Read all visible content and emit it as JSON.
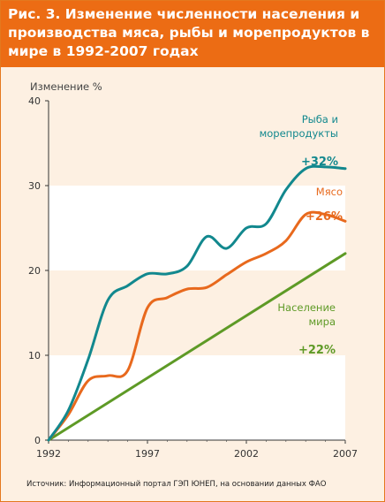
{
  "header": {
    "title": "Рис. 3.  Изменение численности населения и производства мяса, рыбы и морепродуктов в мире в 1992-2007 годах"
  },
  "source": "Источник: Информационный портал ГЭП ЮНЕП, на основании данных ФАО",
  "colors": {
    "header_bg": "#ec6c14",
    "chart_bg_band": "#fdf0e2",
    "fish": "#12888e",
    "meat": "#e8691d",
    "population": "#5e9a26"
  },
  "chart_data": {
    "type": "line",
    "ylabel": "Изменение %",
    "ylim": [
      0,
      40
    ],
    "xlim": [
      1992,
      2007
    ],
    "yticks": [
      "0",
      "10",
      "20",
      "30",
      "40"
    ],
    "xticks": [
      "1992",
      "1997",
      "2002",
      "2007"
    ],
    "grid": "alternating horizontal bands",
    "series": [
      {
        "key": "fish",
        "label_lines": [
          "Рыба и",
          "морепродукты"
        ],
        "change": "+32%",
        "x": [
          1992,
          1993,
          1994,
          1995,
          1996,
          1997,
          1998,
          1999,
          2000,
          2001,
          2002,
          2003,
          2004,
          2005,
          2006,
          2007
        ],
        "values": [
          0,
          3.5,
          9.5,
          16.5,
          18.2,
          19.6,
          19.6,
          20.5,
          24,
          22.6,
          25,
          25.5,
          29.5,
          32,
          32.2,
          32
        ]
      },
      {
        "key": "meat",
        "label_lines": [
          "Мясо"
        ],
        "change": "+26%",
        "x": [
          1992,
          1993,
          1994,
          1995,
          1996,
          1997,
          1998,
          1999,
          2000,
          2001,
          2002,
          2003,
          2004,
          2005,
          2006,
          2007
        ],
        "values": [
          0,
          3,
          7,
          7.6,
          8.2,
          15.6,
          16.8,
          17.8,
          18,
          19.5,
          21,
          22,
          23.5,
          26.6,
          26.6,
          25.8
        ]
      },
      {
        "key": "population",
        "label_lines": [
          "Население",
          "мира"
        ],
        "change": "+22%",
        "x": [
          1992,
          2007
        ],
        "values": [
          0,
          22
        ]
      }
    ]
  }
}
